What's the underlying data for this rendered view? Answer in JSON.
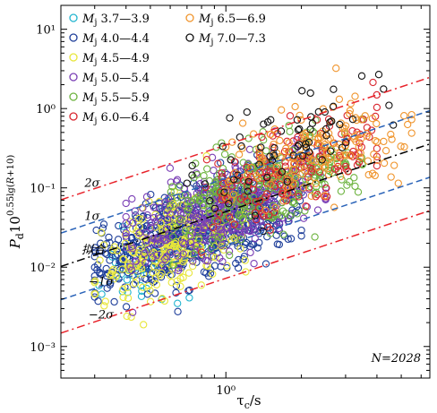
{
  "chart_data": {
    "type": "scatter",
    "x_scale": "log",
    "y_scale": "log",
    "xlim": [
      0.22,
      6.5
    ],
    "ylim": [
      0.0004,
      20
    ],
    "x_ticks": [
      {
        "value": 1,
        "label": "10⁰"
      }
    ],
    "y_ticks": [
      {
        "value": 0.001,
        "label": "10⁻³"
      },
      {
        "value": 0.01,
        "label": "10⁻²"
      },
      {
        "value": 0.1,
        "label": "10⁻¹"
      },
      {
        "value": 1,
        "label": "10⁰"
      },
      {
        "value": 10,
        "label": "10¹"
      }
    ],
    "xlabel": "τc/s",
    "ylabel": "Pd10^(0.55lg(R+10))",
    "annotation_n": "N=2028",
    "fit": {
      "label": "拟合",
      "slope": 1.05,
      "intercept_log10_at_x1": -1.3,
      "color": "#000000"
    },
    "bands": [
      {
        "label": "2σ",
        "offset_log10": 0.84,
        "color": "#e8222a"
      },
      {
        "label": "1σ",
        "offset_log10": 0.42,
        "color": "#2a63b8"
      },
      {
        "label": "−1σ",
        "offset_log10": -0.42,
        "color": "#2a63b8"
      },
      {
        "label": "−2σ",
        "offset_log10": -0.84,
        "color": "#e8222a"
      }
    ],
    "series": [
      {
        "name": "Mj 3.7—3.9",
        "color": "#22b5d0",
        "count": 60,
        "x_range": [
          0.3,
          0.9
        ],
        "fit_shift_log10": -0.3
      },
      {
        "name": "Mj 4.0—4.4",
        "color": "#1f3f9a",
        "count": 700,
        "x_range": [
          0.3,
          2.0
        ],
        "fit_shift_log10": -0.1
      },
      {
        "name": "Mj 4.5—4.9",
        "color": "#e8e63a",
        "count": 260,
        "x_range": [
          0.3,
          1.2
        ],
        "fit_shift_log10": -0.2
      },
      {
        "name": "Mj 5.0—5.4",
        "color": "#7a3fb5",
        "count": 330,
        "x_range": [
          0.4,
          2.5
        ],
        "fit_shift_log10": 0.05
      },
      {
        "name": "Mj 5.5—5.9",
        "color": "#6db33f",
        "count": 280,
        "x_range": [
          0.6,
          3.5
        ],
        "fit_shift_log10": 0.15
      },
      {
        "name": "Mj 6.0—6.4",
        "color": "#d9262f",
        "count": 160,
        "x_range": [
          0.8,
          4.0
        ],
        "fit_shift_log10": 0.25
      },
      {
        "name": "Mj 6.5—6.9",
        "color": "#f0952d",
        "count": 170,
        "x_range": [
          1.0,
          5.5
        ],
        "fit_shift_log10": 0.35
      },
      {
        "name": "Mj 7.0—7.3",
        "color": "#111111",
        "count": 68,
        "x_range": [
          0.7,
          5.0
        ],
        "fit_shift_log10": 0.55
      }
    ],
    "legend_position": "top-left",
    "grid": false
  }
}
